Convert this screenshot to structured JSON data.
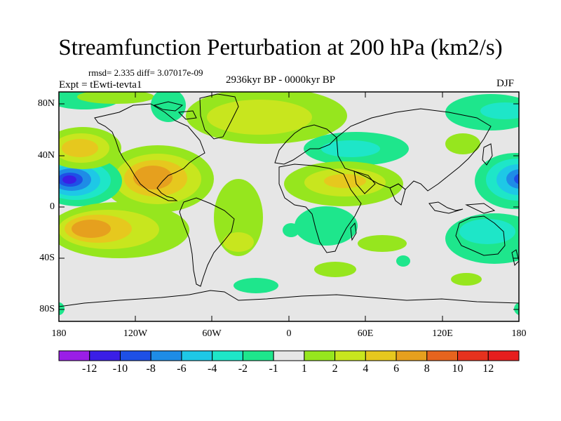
{
  "title": "Streamfunction Perturbation at 200 hPa (km2/s)",
  "stats": "rmsd= 2.335 diff= 3.07017e-09",
  "experiment": "Expt = tEwti-tevta1",
  "period": "2936kyr BP - 0000kyr BP",
  "season": "DJF",
  "map": {
    "lat_ticks": [
      "80N",
      "40N",
      "0",
      "40S",
      "80S"
    ],
    "lon_ticks": [
      "180",
      "120W",
      "60W",
      "0",
      "60E",
      "120E",
      "180"
    ],
    "background_color": "#e6e6e6"
  },
  "colorbar": {
    "labels": [
      "-12",
      "-10",
      "-8",
      "-6",
      "-4",
      "-2",
      "-1",
      "1",
      "2",
      "4",
      "6",
      "8",
      "10",
      "12"
    ],
    "colors": [
      "#9a1ee6",
      "#3a1ee6",
      "#1e50e6",
      "#1e8ce6",
      "#1ec8e6",
      "#1ee6c8",
      "#1ee68c",
      "#e6e6e6",
      "#96e61e",
      "#c8e61e",
      "#e6c81e",
      "#e6a01e",
      "#e6641e",
      "#e6321e",
      "#e61e1e"
    ]
  }
}
